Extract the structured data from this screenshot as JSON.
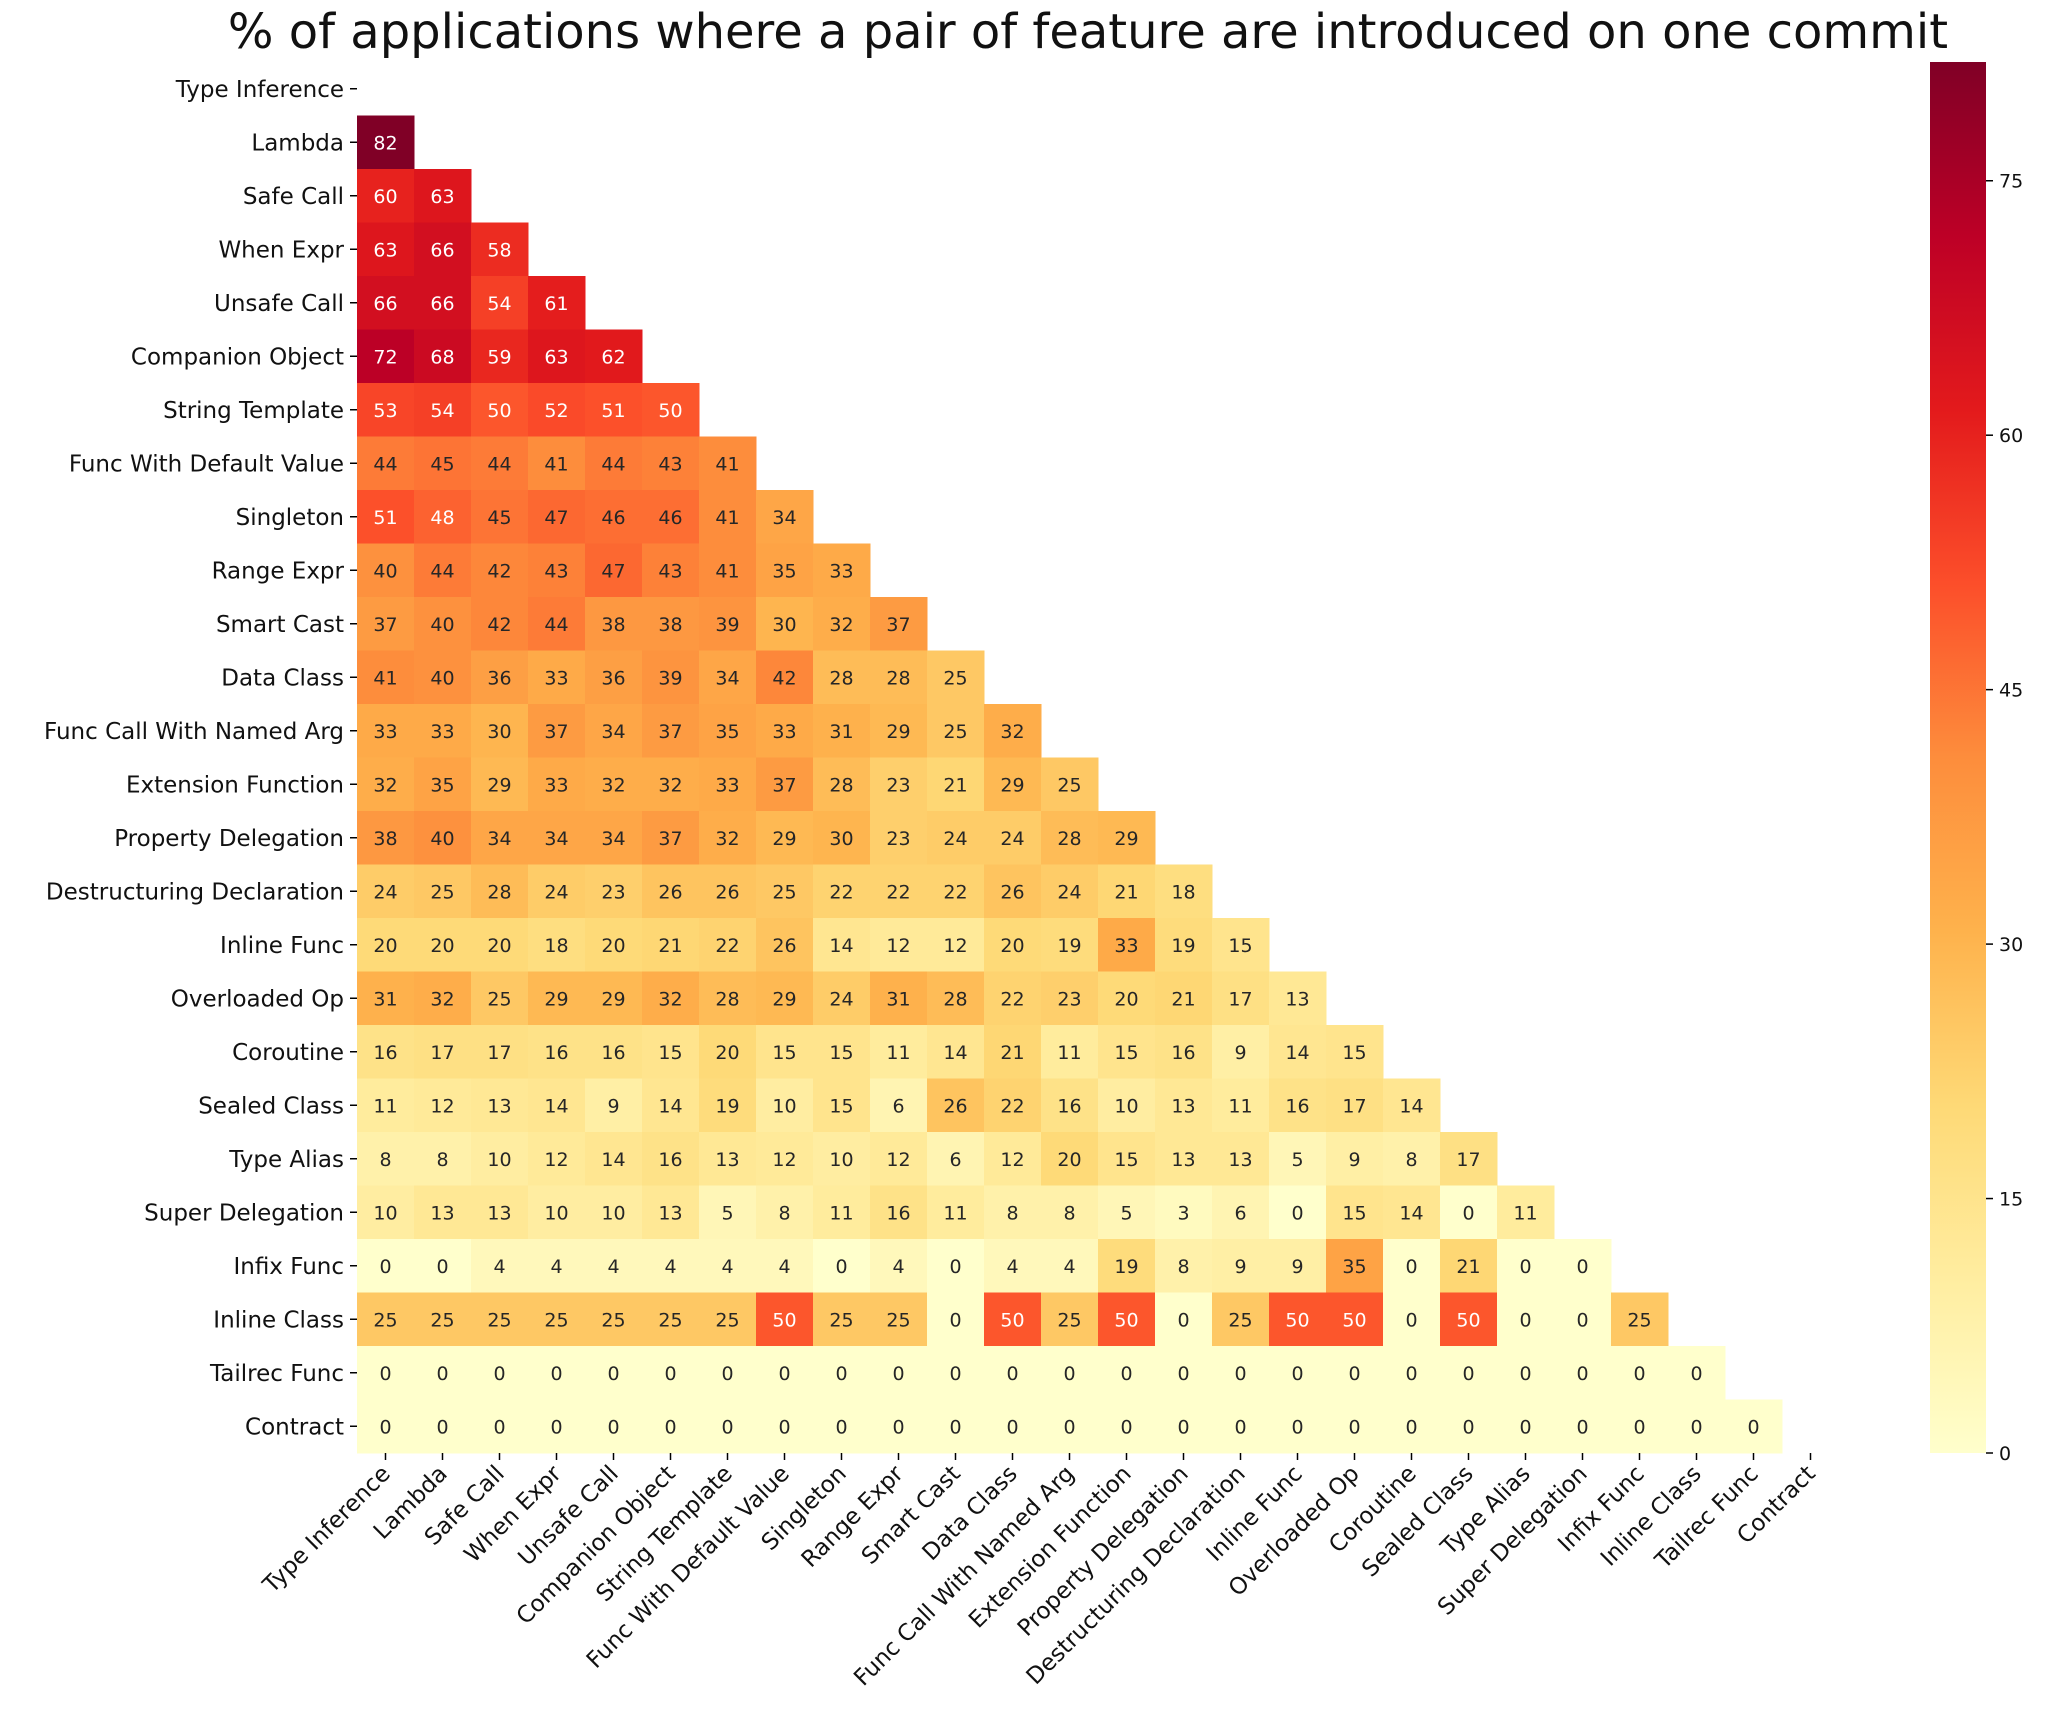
{
  "chart_data": {
    "type": "heatmap",
    "title": "% of applications where a pair of feature are introduced on one commit",
    "features": [
      "Type Inference",
      "Lambda",
      "Safe Call",
      "When Expr",
      "Unsafe Call",
      "Companion Object",
      "String Template",
      "Func With Default Value",
      "Singleton",
      "Range Expr",
      "Smart Cast",
      "Data Class",
      "Func Call With Named Arg",
      "Extension Function",
      "Property Delegation",
      "Destructuring Declaration",
      "Inline Func",
      "Overloaded Op",
      "Coroutine",
      "Sealed Class",
      "Type Alias",
      "Super Delegation",
      "Infix Func",
      "Inline Class",
      "Tailrec Func",
      "Contract"
    ],
    "matrix_lower_triangle": [
      [],
      [
        82
      ],
      [
        60,
        63
      ],
      [
        63,
        66,
        58
      ],
      [
        66,
        66,
        54,
        61
      ],
      [
        72,
        68,
        59,
        63,
        62
      ],
      [
        53,
        54,
        50,
        52,
        51,
        50
      ],
      [
        44,
        45,
        44,
        41,
        44,
        43,
        41
      ],
      [
        51,
        48,
        45,
        47,
        46,
        46,
        41,
        34
      ],
      [
        40,
        44,
        42,
        43,
        47,
        43,
        41,
        35,
        33
      ],
      [
        37,
        40,
        42,
        44,
        38,
        38,
        39,
        30,
        32,
        37
      ],
      [
        41,
        40,
        36,
        33,
        36,
        39,
        34,
        42,
        28,
        28,
        25
      ],
      [
        33,
        33,
        30,
        37,
        34,
        37,
        35,
        33,
        31,
        29,
        25,
        32
      ],
      [
        32,
        35,
        29,
        33,
        32,
        32,
        33,
        37,
        28,
        23,
        21,
        29,
        25
      ],
      [
        38,
        40,
        34,
        34,
        34,
        37,
        32,
        29,
        30,
        23,
        24,
        24,
        28,
        29
      ],
      [
        24,
        25,
        28,
        24,
        23,
        26,
        26,
        25,
        22,
        22,
        22,
        26,
        24,
        21,
        18
      ],
      [
        20,
        20,
        20,
        18,
        20,
        21,
        22,
        26,
        14,
        12,
        12,
        20,
        19,
        33,
        19,
        15
      ],
      [
        31,
        32,
        25,
        29,
        29,
        32,
        28,
        29,
        24,
        31,
        28,
        22,
        23,
        20,
        21,
        17,
        13
      ],
      [
        16,
        17,
        17,
        16,
        16,
        15,
        20,
        15,
        15,
        11,
        14,
        21,
        11,
        15,
        16,
        9,
        14,
        15
      ],
      [
        11,
        12,
        13,
        14,
        9,
        14,
        19,
        10,
        15,
        6,
        26,
        22,
        16,
        10,
        13,
        11,
        16,
        17,
        14
      ],
      [
        8,
        8,
        10,
        12,
        14,
        16,
        13,
        12,
        10,
        12,
        6,
        12,
        20,
        15,
        13,
        13,
        5,
        9,
        8,
        17
      ],
      [
        10,
        13,
        13,
        10,
        10,
        13,
        5,
        8,
        11,
        16,
        11,
        8,
        8,
        5,
        3,
        6,
        0,
        15,
        14,
        0,
        11
      ],
      [
        0,
        0,
        4,
        4,
        4,
        4,
        4,
        4,
        0,
        4,
        0,
        4,
        4,
        19,
        8,
        9,
        9,
        35,
        0,
        21,
        0,
        0
      ],
      [
        25,
        25,
        25,
        25,
        25,
        25,
        25,
        50,
        25,
        25,
        0,
        50,
        25,
        50,
        0,
        25,
        50,
        50,
        0,
        50,
        0,
        0,
        25
      ],
      [
        0,
        0,
        0,
        0,
        0,
        0,
        0,
        0,
        0,
        0,
        0,
        0,
        0,
        0,
        0,
        0,
        0,
        0,
        0,
        0,
        0,
        0,
        0,
        0
      ],
      [
        0,
        0,
        0,
        0,
        0,
        0,
        0,
        0,
        0,
        0,
        0,
        0,
        0,
        0,
        0,
        0,
        0,
        0,
        0,
        0,
        0,
        0,
        0,
        0,
        0
      ]
    ],
    "colormap": "YlOrRd",
    "colormap_stops": [
      "#ffffcc",
      "#ffeda0",
      "#fed976",
      "#feb24c",
      "#fd8d3c",
      "#fc4e2a",
      "#e31a1c",
      "#bd0026",
      "#800026"
    ],
    "vmin": 0,
    "vmax": 82,
    "colorbar_ticks": [
      0,
      15,
      30,
      45,
      60,
      75
    ],
    "grid": false
  }
}
